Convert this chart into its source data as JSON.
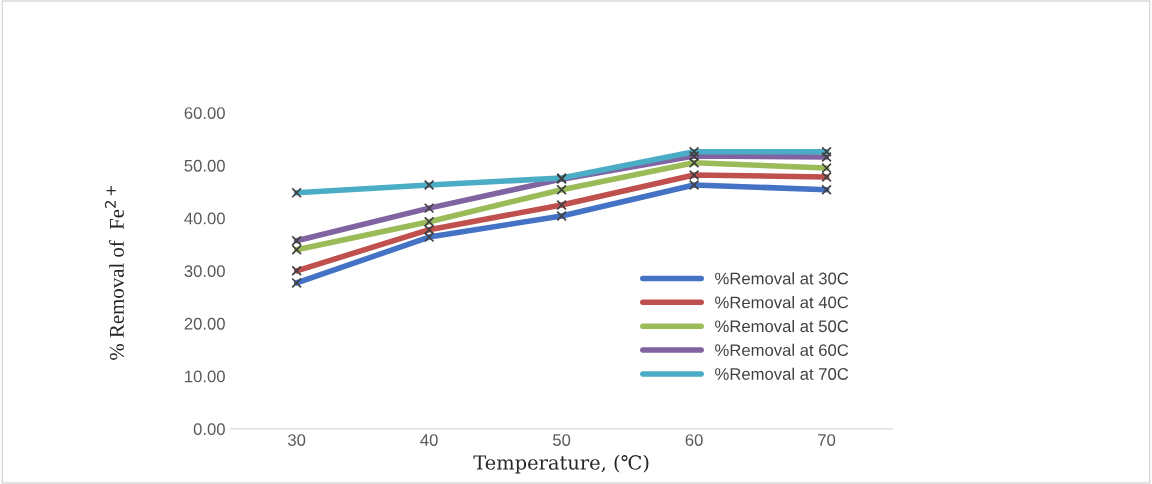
{
  "chart_data": {
    "type": "line",
    "xlabel": "Temperature, (℃)",
    "ylabel": "% Removal of  Fe$^{2+}$",
    "categories": [
      "30",
      "40",
      "50",
      "60",
      "70"
    ],
    "series": [
      {
        "name": "%Removal at 30C",
        "color": "#4472c4",
        "values": [
          27.7,
          36.4,
          40.4,
          46.3,
          45.4
        ]
      },
      {
        "name": "%Removal at 40C",
        "color": "#c0504d",
        "values": [
          30.0,
          37.8,
          42.5,
          48.2,
          47.8
        ]
      },
      {
        "name": "%Removal at 50C",
        "color": "#9bbb59",
        "values": [
          34.0,
          39.3,
          45.4,
          50.5,
          49.5
        ]
      },
      {
        "name": "%Removal at 60C",
        "color": "#8064a2",
        "values": [
          35.7,
          41.9,
          47.4,
          51.8,
          51.6
        ]
      },
      {
        "name": "%Removal at 70C",
        "color": "#4bacc6",
        "values": [
          44.8,
          46.3,
          47.6,
          52.6,
          52.6
        ]
      }
    ],
    "ylim": [
      0,
      60
    ],
    "yticks": [
      {
        "value": 0,
        "label": "0.00"
      },
      {
        "value": 10,
        "label": "10.00"
      },
      {
        "value": 20,
        "label": "20.00"
      },
      {
        "value": 30,
        "label": "30.00"
      },
      {
        "value": 40,
        "label": "40.00"
      },
      {
        "value": 50,
        "label": "50.00"
      },
      {
        "value": 60,
        "label": "60.00"
      }
    ],
    "grid": false,
    "legend": "right",
    "marker": "cross",
    "line_style": "solid"
  }
}
